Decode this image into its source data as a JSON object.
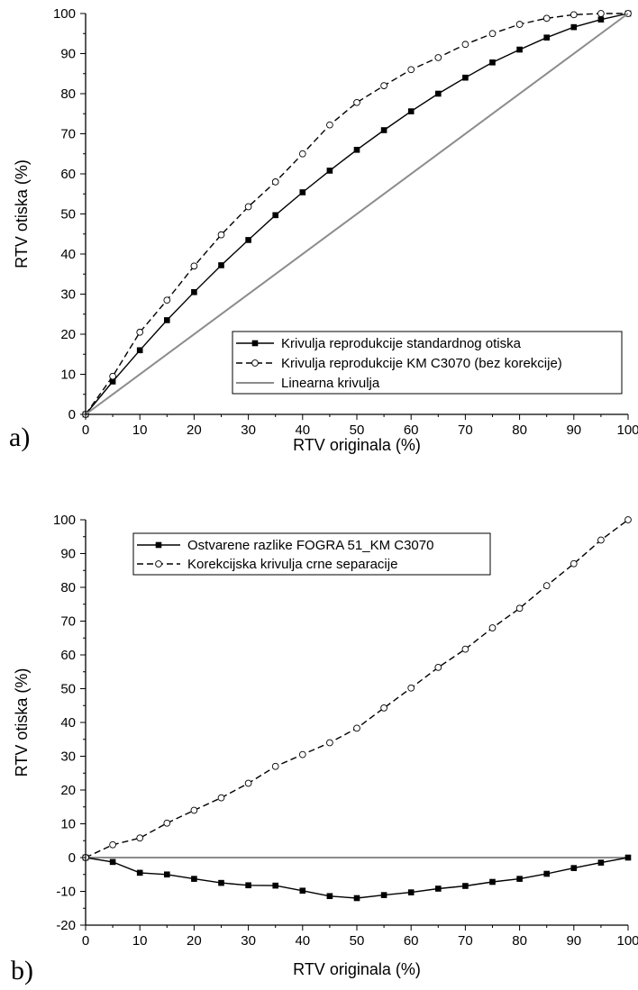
{
  "chart_data": [
    {
      "panel": "a)",
      "type": "line",
      "xlabel": "RTV originala (%)",
      "ylabel": "RTV otiska (%)",
      "xlim": [
        0,
        100
      ],
      "ylim": [
        0,
        100
      ],
      "xticks": [
        "0",
        "10",
        "20",
        "30",
        "40",
        "50",
        "60",
        "70",
        "80",
        "90",
        "100"
      ],
      "yticks": [
        "0",
        "10",
        "20",
        "30",
        "40",
        "50",
        "60",
        "70",
        "80",
        "90",
        "100"
      ],
      "grid": false,
      "legend_position": "bottom-right",
      "series": [
        {
          "name": "Krivulja reprodukcije standardnog otiska",
          "style": "solid",
          "marker": "filled-square",
          "color": "#000000",
          "x": [
            0,
            5,
            10,
            15,
            20,
            25,
            30,
            35,
            40,
            45,
            50,
            55,
            60,
            65,
            70,
            75,
            80,
            85,
            90,
            95,
            100
          ],
          "y": [
            0,
            8.2,
            16,
            23.5,
            30.5,
            37.2,
            43.5,
            49.7,
            55.4,
            60.8,
            66,
            70.9,
            75.6,
            80,
            84,
            87.8,
            91,
            94,
            96.6,
            98.5,
            100
          ]
        },
        {
          "name": "Krivulja reprodukcije KM C3070 (bez korekcije)",
          "style": "dashed",
          "marker": "open-circle",
          "color": "#000000",
          "x": [
            0,
            5,
            10,
            15,
            20,
            25,
            30,
            35,
            40,
            45,
            50,
            55,
            60,
            65,
            70,
            75,
            80,
            85,
            90,
            95,
            100
          ],
          "y": [
            0,
            9.5,
            20.5,
            28.5,
            37,
            44.8,
            51.8,
            58,
            65,
            72.2,
            77.8,
            82,
            86,
            89,
            92.3,
            95,
            97.3,
            98.8,
            99.7,
            100,
            100
          ]
        },
        {
          "name": "Linearna krivulja",
          "style": "solid",
          "marker": "none",
          "color": "#8c8c8c",
          "x": [
            0,
            100
          ],
          "y": [
            0,
            100
          ]
        }
      ]
    },
    {
      "panel": "b)",
      "type": "line",
      "xlabel": "RTV originala (%)",
      "ylabel": "RTV otiska (%)",
      "xlim": [
        0,
        100
      ],
      "ylim": [
        -20,
        100
      ],
      "xticks": [
        "0",
        "10",
        "20",
        "30",
        "40",
        "50",
        "60",
        "70",
        "80",
        "90",
        "100"
      ],
      "yticks": [
        "-20",
        "-10",
        "0",
        "10",
        "20",
        "30",
        "40",
        "50",
        "60",
        "70",
        "80",
        "90",
        "100"
      ],
      "grid": false,
      "legend_position": "top-left",
      "zero_line_color": "#8c8c8c",
      "series": [
        {
          "name": "Ostvarene razlike FOGRA 51_KM C3070",
          "style": "solid",
          "marker": "filled-square",
          "color": "#000000",
          "x": [
            0,
            5,
            10,
            15,
            20,
            25,
            30,
            35,
            40,
            45,
            50,
            55,
            60,
            65,
            70,
            75,
            80,
            85,
            90,
            95,
            100
          ],
          "y": [
            0,
            -1.3,
            -4.5,
            -5,
            -6.3,
            -7.5,
            -8.2,
            -8.3,
            -9.8,
            -11.4,
            -12,
            -11.1,
            -10.3,
            -9.2,
            -8.4,
            -7.2,
            -6.3,
            -4.8,
            -3.1,
            -1.5,
            0
          ]
        },
        {
          "name": "Korekcijska krivulja crne separacije",
          "style": "dashed",
          "marker": "open-circle",
          "color": "#000000",
          "x": [
            0,
            5,
            10,
            15,
            20,
            25,
            30,
            35,
            40,
            45,
            50,
            55,
            60,
            65,
            70,
            75,
            80,
            85,
            90,
            95,
            100
          ],
          "y": [
            0,
            3.8,
            5.8,
            10.2,
            14,
            17.7,
            22,
            27,
            30.5,
            34,
            38.3,
            44.3,
            50.2,
            56.3,
            61.7,
            68,
            73.8,
            80.5,
            87,
            94,
            100
          ]
        }
      ]
    }
  ]
}
